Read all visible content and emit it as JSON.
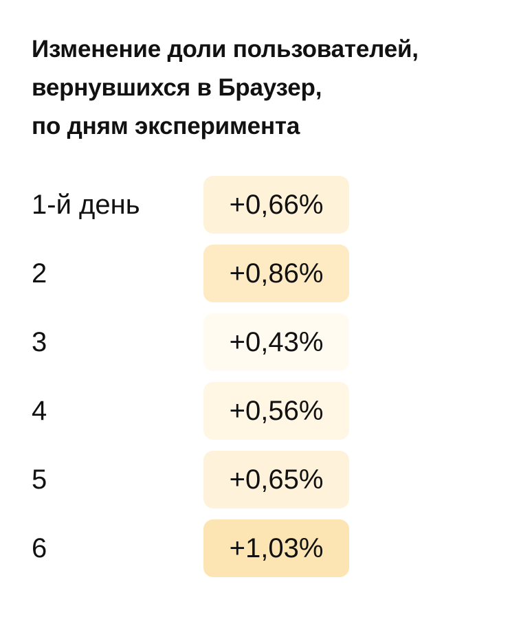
{
  "chart_data": {
    "type": "table",
    "title_lines": [
      "Изменение доли пользователей,",
      "вернувшихся в Браузер,",
      "по дням эксперимента"
    ],
    "rows": [
      {
        "label": "1-й день",
        "value": 0.66,
        "display": "+0,66%"
      },
      {
        "label": "2",
        "value": 0.86,
        "display": "+0,86%"
      },
      {
        "label": "3",
        "value": 0.43,
        "display": "+0,43%"
      },
      {
        "label": "4",
        "value": 0.56,
        "display": "+0,56%"
      },
      {
        "label": "5",
        "value": 0.65,
        "display": "+0,65%"
      },
      {
        "label": "6",
        "value": 1.03,
        "display": "+1,03%"
      }
    ],
    "colors": {
      "cell_low": "#fffbf0",
      "cell_high": "#fde5b3",
      "text": "#111111"
    }
  }
}
